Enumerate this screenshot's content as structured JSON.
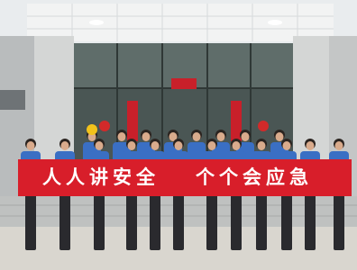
{
  "banner": {
    "left": "人人讲安全",
    "right": "个个会应急"
  }
}
